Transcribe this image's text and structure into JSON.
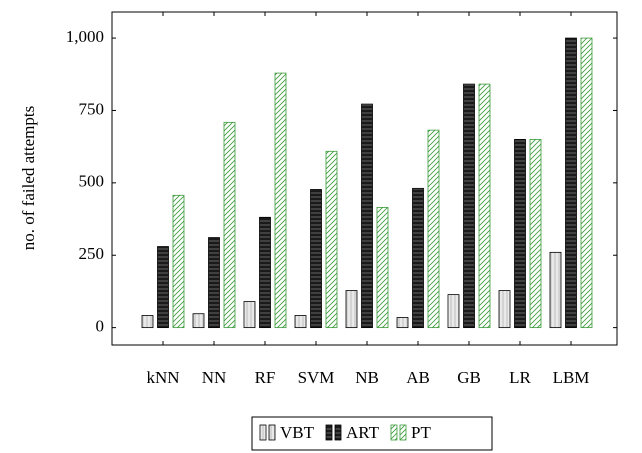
{
  "chart_data": {
    "type": "bar",
    "ylabel": "no. of failed attempts",
    "categories": [
      "kNN",
      "NN",
      "RF",
      "SVM",
      "NB",
      "AB",
      "GB",
      "LR",
      "LBM"
    ],
    "series": [
      {
        "name": "VBT",
        "color": "#d3d3d3",
        "values": [
          42,
          48,
          90,
          42,
          128,
          35,
          114,
          128,
          260
        ]
      },
      {
        "name": "ART",
        "color": "#1a1a1a",
        "values": [
          280,
          311,
          381,
          477,
          772,
          481,
          841,
          650,
          1000
        ]
      },
      {
        "name": "PT",
        "color": "#3a9a3a",
        "values": [
          457,
          709,
          879,
          609,
          415,
          682,
          841,
          650,
          1000
        ]
      }
    ],
    "ylim": [
      -60,
      1090
    ],
    "yticks": [
      0,
      250,
      500,
      750,
      {
        "value": 1000,
        "label": "1,000"
      }
    ],
    "grid": false
  }
}
